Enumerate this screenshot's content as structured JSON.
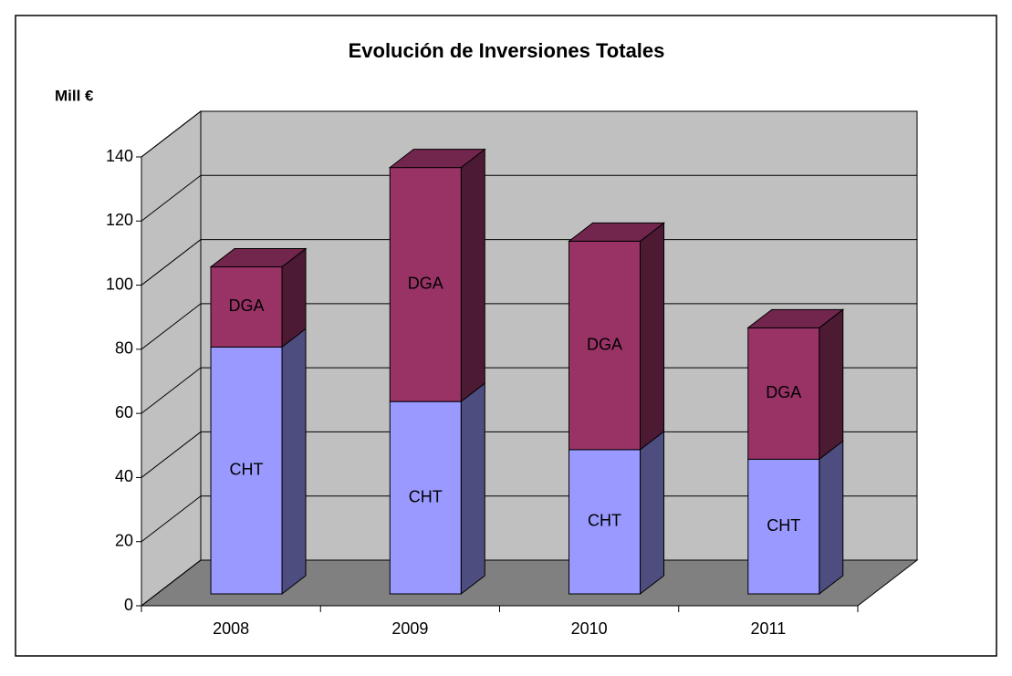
{
  "chart_data": {
    "type": "bar3d_stacked",
    "title": "Evolución de Inversiones Totales",
    "y_label": "Mill €",
    "categories": [
      "2008",
      "2009",
      "2010",
      "2011"
    ],
    "series": [
      {
        "name": "CHT",
        "color": "#9999ff",
        "values": [
          77,
          60,
          45,
          42
        ]
      },
      {
        "name": "DGA",
        "color": "#993366",
        "values": [
          25,
          73,
          65,
          41
        ]
      }
    ],
    "ylim": [
      0,
      140
    ],
    "yticks": [
      0,
      20,
      40,
      60,
      80,
      100,
      120,
      140
    ],
    "grid": true
  }
}
